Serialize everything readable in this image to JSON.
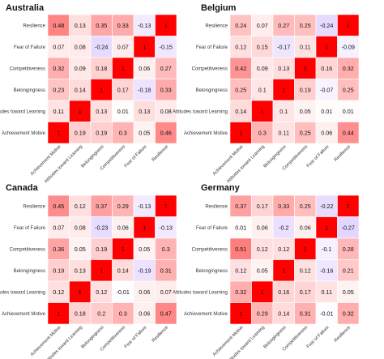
{
  "chart_data": [
    {
      "type": "heatmap",
      "title": "Australia",
      "rows": [
        "Resilience",
        "Fear of Failure",
        "Competitiveness",
        "Belongingness",
        "Attitudes toward Learning",
        "Achievement Motive"
      ],
      "columns": [
        "Achievement Motive",
        "Attitudes toward Learning",
        "Belongingness",
        "Competitiveness",
        "Fear of Failure",
        "Resilience"
      ],
      "values": [
        [
          0.48,
          0.13,
          0.35,
          0.33,
          -0.13,
          1
        ],
        [
          0.07,
          0.08,
          -0.24,
          0.07,
          1,
          -0.15
        ],
        [
          0.32,
          0.09,
          0.18,
          1,
          0.06,
          0.27
        ],
        [
          0.23,
          0.14,
          1,
          0.17,
          -0.18,
          0.33
        ],
        [
          0.11,
          1,
          0.13,
          0.01,
          0.13,
          0.08
        ],
        [
          1,
          0.19,
          0.19,
          0.3,
          0.05,
          0.46
        ]
      ],
      "colors": {
        "positive": "#ff0000",
        "negative": "#9966ff",
        "neutral": "#ffffff"
      },
      "value_range": [
        -1,
        1
      ],
      "legend": "none"
    },
    {
      "type": "heatmap",
      "title": "Belgium",
      "rows": [
        "Resilience",
        "Fear of Failure",
        "Competitiveness",
        "Belongingness",
        "Attitudes toward Learning",
        "Achievement Motive"
      ],
      "columns": [
        "Achievement Motive",
        "Attitudes toward Learning",
        "Belongingness",
        "Competitiveness",
        "Fear of Failure",
        "Resilience"
      ],
      "values": [
        [
          0.24,
          0.07,
          0.27,
          0.25,
          -0.24,
          1
        ],
        [
          0.12,
          0.15,
          -0.17,
          0.11,
          1,
          -0.09
        ],
        [
          0.42,
          0.09,
          0.13,
          1,
          0.16,
          0.32
        ],
        [
          0.25,
          0.1,
          1,
          0.19,
          -0.07,
          0.25
        ],
        [
          0.14,
          1,
          0.1,
          0.05,
          0.01,
          0.01
        ],
        [
          1,
          0.3,
          0.11,
          0.25,
          0.06,
          0.44
        ]
      ],
      "colors": {
        "positive": "#ff0000",
        "negative": "#9966ff",
        "neutral": "#ffffff"
      },
      "value_range": [
        -1,
        1
      ],
      "legend": "none"
    },
    {
      "type": "heatmap",
      "title": "Canada",
      "rows": [
        "Resilience",
        "Fear of Failure",
        "Competitiveness",
        "Belongingness",
        "Attitudes toward Learning",
        "Achievement Motive"
      ],
      "columns": [
        "Achievement Motive",
        "Attitudes toward Learning",
        "Belongingness",
        "Competitiveness",
        "Fear of Failure",
        "Resilience"
      ],
      "values": [
        [
          0.45,
          0.12,
          0.37,
          0.29,
          -0.13,
          1
        ],
        [
          0.07,
          0.08,
          -0.23,
          0.06,
          1,
          -0.13
        ],
        [
          0.36,
          0.05,
          0.19,
          1,
          0.05,
          0.3
        ],
        [
          0.19,
          0.13,
          1,
          0.14,
          -0.19,
          0.31
        ],
        [
          0.12,
          1,
          0.12,
          -0.01,
          0.06,
          0.07
        ],
        [
          1,
          0.18,
          0.2,
          0.3,
          0.06,
          0.47
        ]
      ],
      "colors": {
        "positive": "#ff0000",
        "negative": "#9966ff",
        "neutral": "#ffffff"
      },
      "value_range": [
        -1,
        1
      ],
      "legend": "none"
    },
    {
      "type": "heatmap",
      "title": "Germany",
      "rows": [
        "Resilience",
        "Fear of Failure",
        "Competitiveness",
        "Belongingness",
        "Attitudes toward Learning",
        "Achievement Motive"
      ],
      "columns": [
        "Achievement Motive",
        "Attitudes toward Learning",
        "Belongingness",
        "Competitiveness",
        "Fear of Failure",
        "Resilience"
      ],
      "values": [
        [
          0.37,
          0.17,
          0.33,
          0.25,
          -0.22,
          1
        ],
        [
          0.01,
          0.06,
          -0.2,
          0.06,
          1,
          -0.27
        ],
        [
          0.51,
          0.12,
          0.12,
          1,
          -0.1,
          0.28
        ],
        [
          0.12,
          0.05,
          1,
          0.12,
          -0.16,
          0.21
        ],
        [
          0.32,
          1,
          0.16,
          0.17,
          0.11,
          0.05
        ],
        [
          1,
          0.29,
          0.14,
          0.31,
          -0.01,
          0.32
        ]
      ],
      "colors": {
        "positive": "#ff0000",
        "negative": "#9966ff",
        "neutral": "#ffffff"
      },
      "value_range": [
        -1,
        1
      ],
      "legend": "none"
    }
  ]
}
